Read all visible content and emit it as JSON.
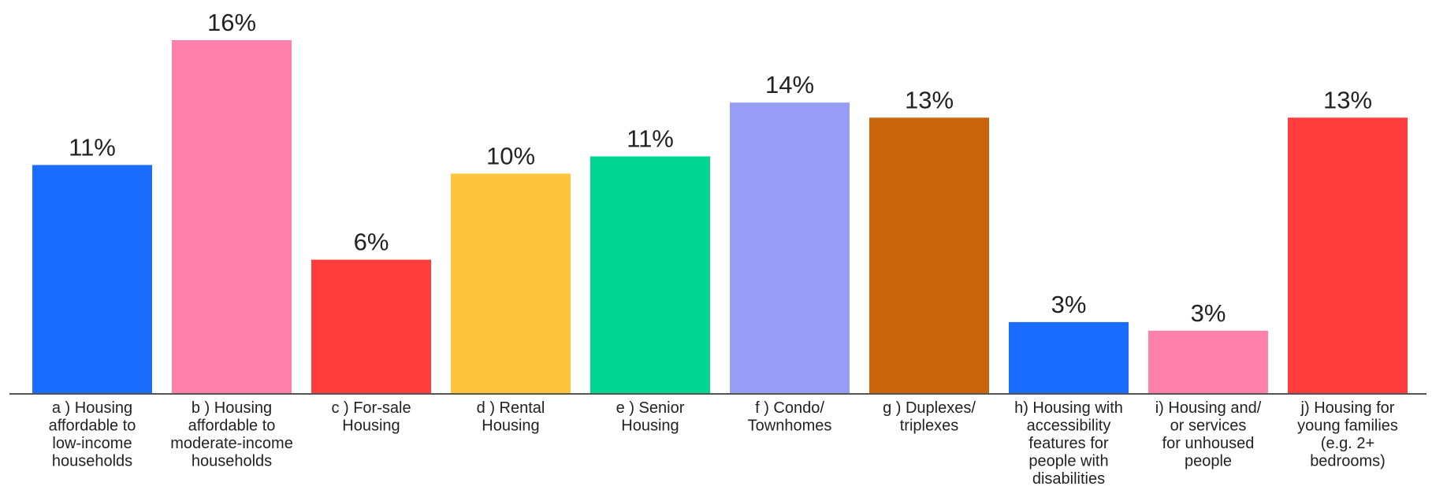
{
  "chart_data": {
    "type": "bar",
    "categories": [
      [
        "a ) Housing",
        "affordable to",
        "low-income",
        "households"
      ],
      [
        "b ) Housing",
        "affordable to",
        "moderate-income",
        "households"
      ],
      [
        "c ) For-sale",
        "Housing"
      ],
      [
        "d ) Rental",
        "Housing"
      ],
      [
        "e ) Senior",
        "Housing"
      ],
      [
        "f ) Condo/",
        "Townhomes"
      ],
      [
        "g ) Duplexes/",
        "triplexes"
      ],
      [
        "h) Housing with",
        "accessibility",
        "features for",
        "people with",
        "disabilities"
      ],
      [
        "i) Housing and/",
        "or services",
        "for unhoused",
        "people"
      ],
      [
        "j) Housing for",
        "young families",
        "(e.g. 2+",
        "bedrooms)"
      ]
    ],
    "values": [
      10.6,
      16.4,
      6.2,
      10.2,
      11.0,
      13.5,
      12.8,
      3.3,
      2.9,
      12.8
    ],
    "value_labels": [
      "11%",
      "16%",
      "6%",
      "10%",
      "11%",
      "14%",
      "13%",
      "3%",
      "3%",
      "13%"
    ],
    "colors": [
      "#1a6bff",
      "#ff80ab",
      "#ff3d3d",
      "#ffc43d",
      "#00d68f",
      "#979cf5",
      "#c9640a",
      "#1a6bff",
      "#ff80ab",
      "#ff3d3d"
    ]
  }
}
